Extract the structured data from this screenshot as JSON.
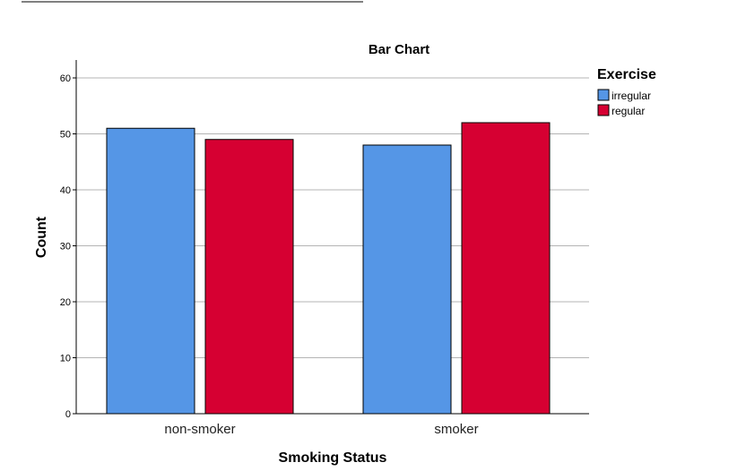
{
  "chart_data": {
    "type": "bar",
    "title": "Bar Chart",
    "xlabel": "Smoking Status",
    "ylabel": "Count",
    "categories": [
      "non-smoker",
      "smoker"
    ],
    "series": [
      {
        "name": "irregular",
        "values": [
          51,
          48
        ],
        "color": "#5596e6"
      },
      {
        "name": "regular",
        "values": [
          49,
          52
        ],
        "color": "#d60032"
      }
    ],
    "ylim": [
      0,
      60
    ],
    "yticks": [
      0,
      10,
      20,
      30,
      40,
      50,
      60
    ],
    "grid": true,
    "legend": {
      "title": "Exercise",
      "placement": "right"
    }
  }
}
